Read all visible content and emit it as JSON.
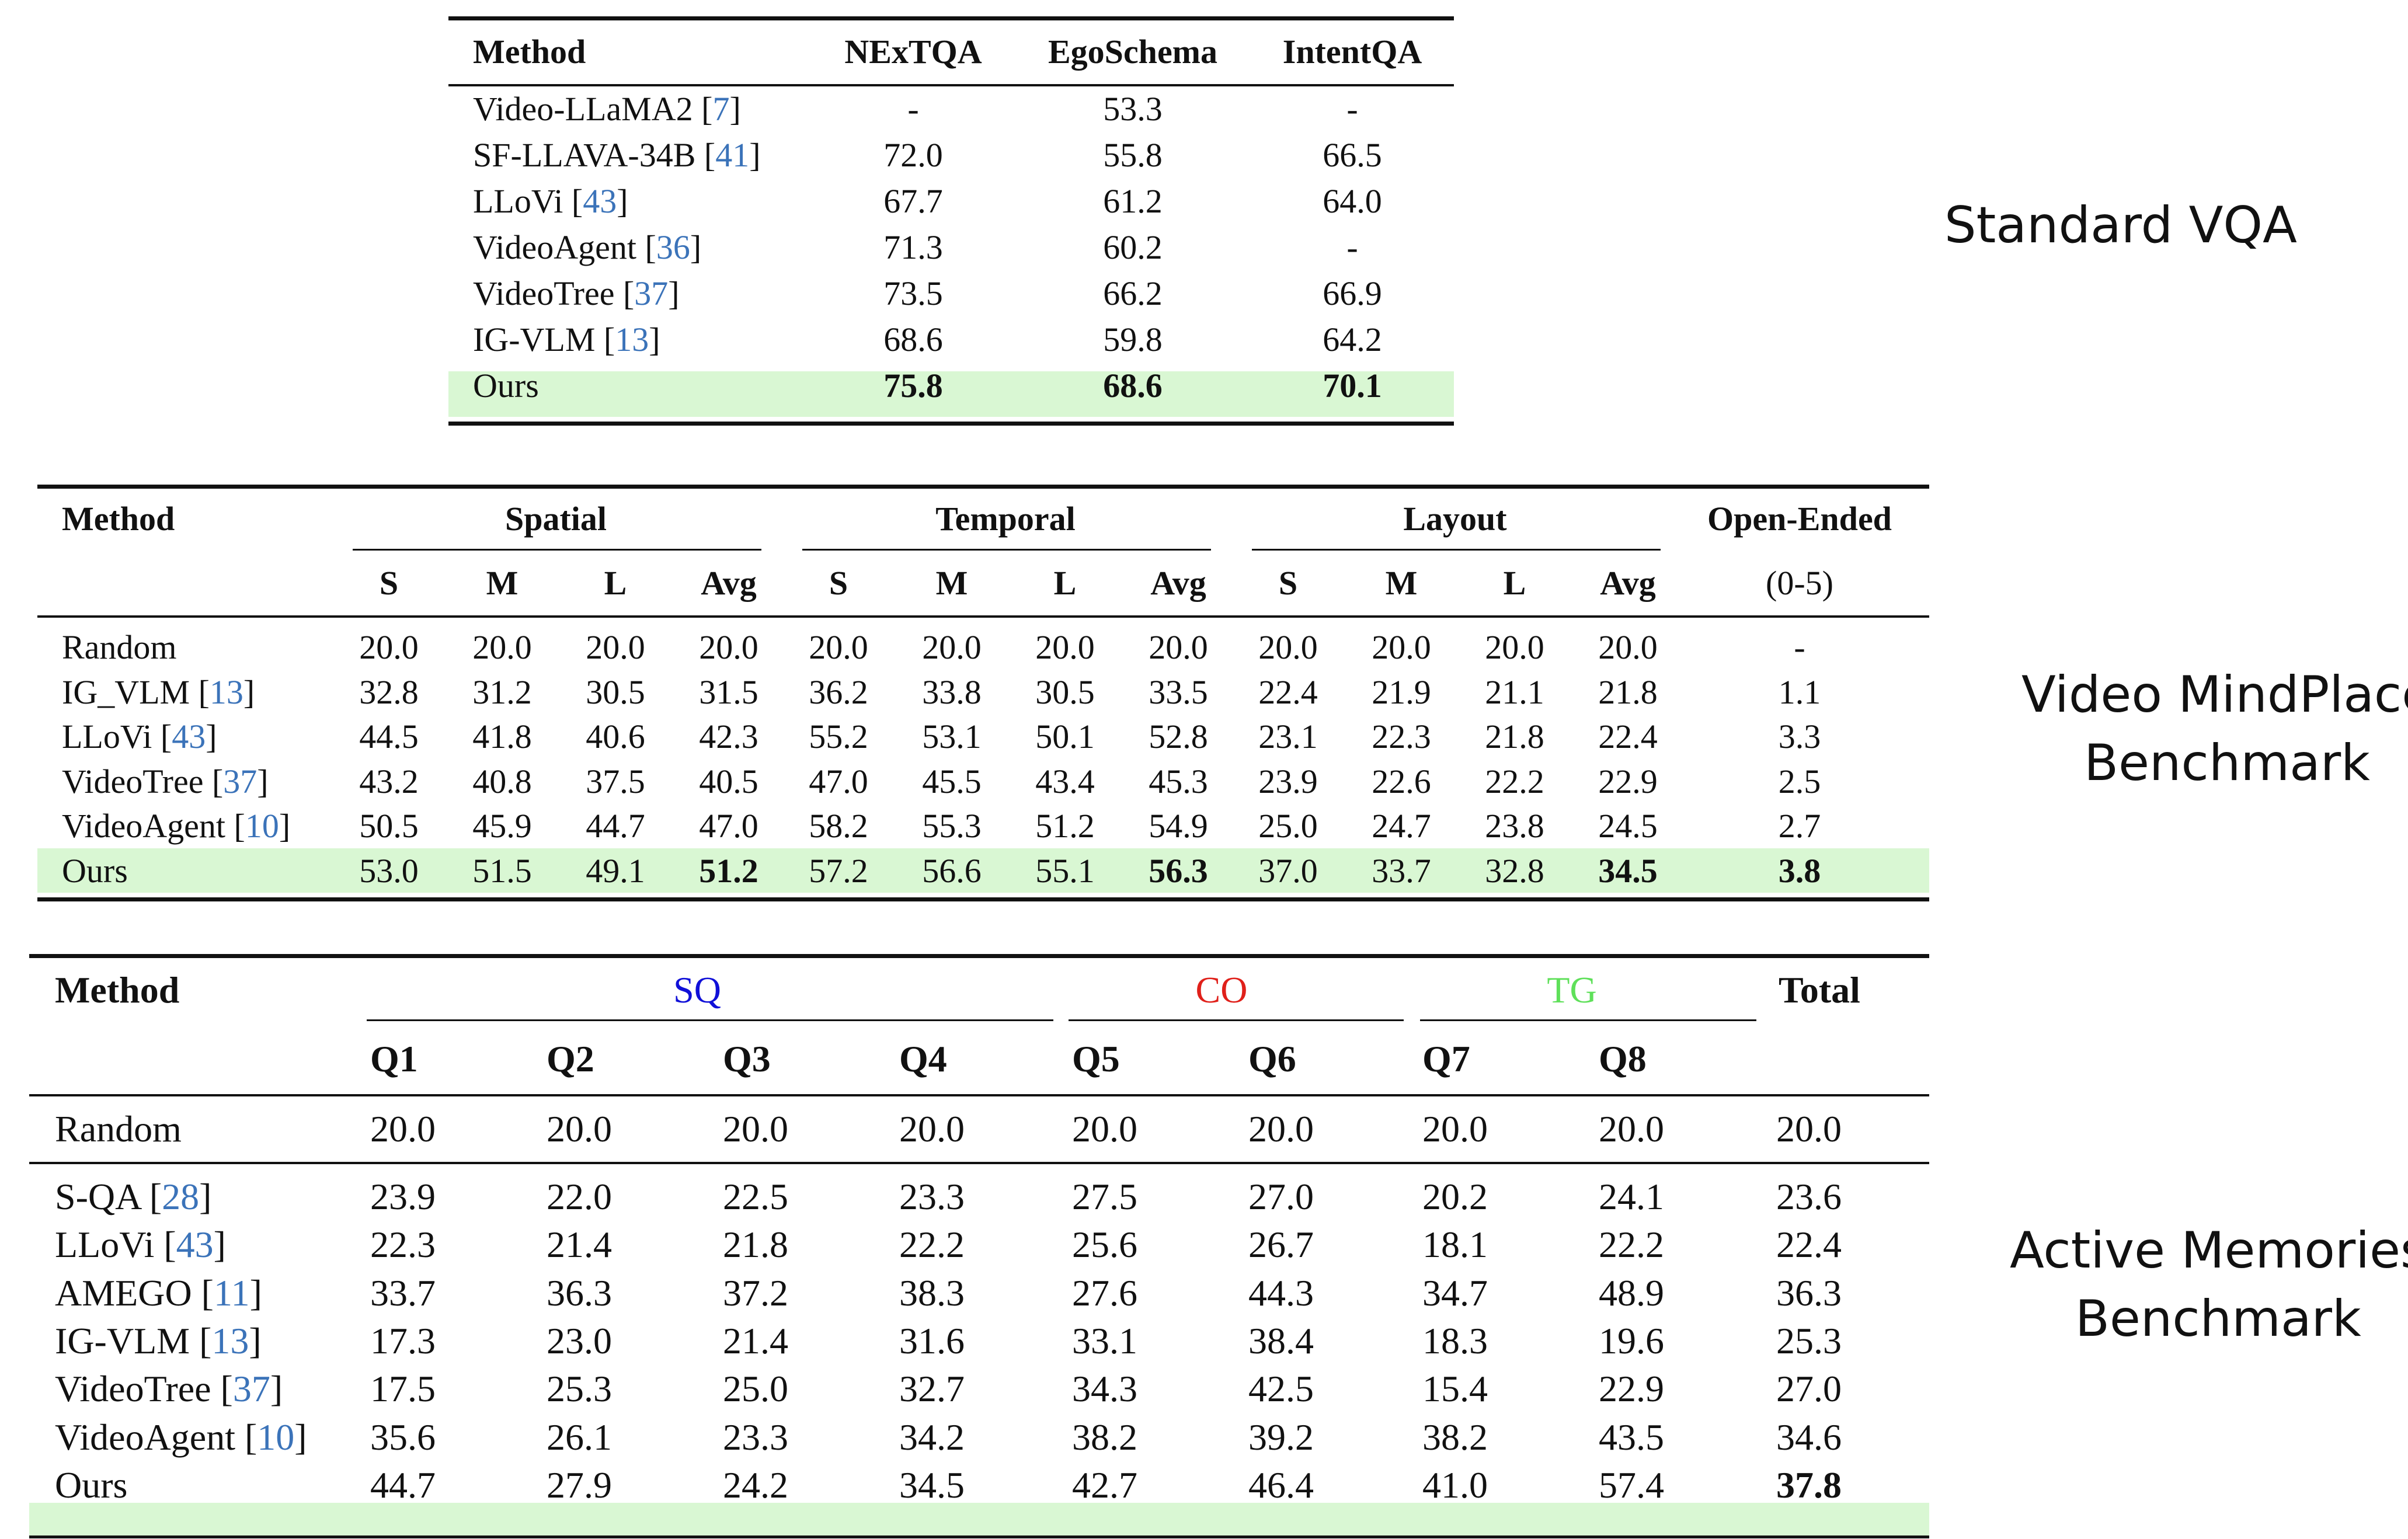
{
  "side_labels": {
    "standard_vqa": "Standard VQA",
    "mindplace_line1": "Video MindPlace",
    "mindplace_line2": "Benchmark",
    "active_line1": "Active Memories",
    "active_line2": "Benchmark"
  },
  "table1": {
    "headers": [
      "Method",
      "NExTQA",
      "EgoSchema",
      "IntentQA"
    ],
    "rows": [
      {
        "name": "Video-LLaMA2",
        "ref": "7",
        "values": [
          "-",
          "53.3",
          "-"
        ]
      },
      {
        "name": "SF-LLAVA-34B",
        "ref": "41",
        "values": [
          "72.0",
          "55.8",
          "66.5"
        ]
      },
      {
        "name": "LLoVi",
        "ref": "43",
        "values": [
          "67.7",
          "61.2",
          "64.0"
        ]
      },
      {
        "name": "VideoAgent",
        "ref": "36",
        "values": [
          "71.3",
          "60.2",
          "-"
        ]
      },
      {
        "name": "VideoTree",
        "ref": "37",
        "values": [
          "73.5",
          "66.2",
          "66.9"
        ]
      },
      {
        "name": "IG-VLM",
        "ref": "13",
        "values": [
          "68.6",
          "59.8",
          "64.2"
        ]
      },
      {
        "name": "Ours",
        "ref": "",
        "values": [
          "75.8",
          "68.6",
          "70.1"
        ]
      }
    ]
  },
  "table2": {
    "method_header": "Method",
    "groups": [
      "Spatial",
      "Temporal",
      "Layout",
      "Open-Ended"
    ],
    "subheaders": [
      "S",
      "M",
      "L",
      "Avg",
      "S",
      "M",
      "L",
      "Avg",
      "S",
      "M",
      "L",
      "Avg",
      "(0-5)"
    ],
    "rows": [
      {
        "name": "Random",
        "ref": "",
        "values": [
          "20.0",
          "20.0",
          "20.0",
          "20.0",
          "20.0",
          "20.0",
          "20.0",
          "20.0",
          "20.0",
          "20.0",
          "20.0",
          "20.0",
          "-"
        ]
      },
      {
        "name": "IG_VLM",
        "ref": "13",
        "values": [
          "32.8",
          "31.2",
          "30.5",
          "31.5",
          "36.2",
          "33.8",
          "30.5",
          "33.5",
          "22.4",
          "21.9",
          "21.1",
          "21.8",
          "1.1"
        ]
      },
      {
        "name": "LLoVi",
        "ref": "43",
        "values": [
          "44.5",
          "41.8",
          "40.6",
          "42.3",
          "55.2",
          "53.1",
          "50.1",
          "52.8",
          "23.1",
          "22.3",
          "21.8",
          "22.4",
          "3.3"
        ]
      },
      {
        "name": "VideoTree",
        "ref": "37",
        "values": [
          "43.2",
          "40.8",
          "37.5",
          "40.5",
          "47.0",
          "45.5",
          "43.4",
          "45.3",
          "23.9",
          "22.6",
          "22.2",
          "22.9",
          "2.5"
        ]
      },
      {
        "name": "VideoAgent",
        "ref": "10",
        "values": [
          "50.5",
          "45.9",
          "44.7",
          "47.0",
          "58.2",
          "55.3",
          "51.2",
          "54.9",
          "25.0",
          "24.7",
          "23.8",
          "24.5",
          "2.7"
        ]
      },
      {
        "name": "Ours",
        "ref": "",
        "values": [
          "53.0",
          "51.5",
          "49.1",
          "51.2",
          "57.2",
          "56.6",
          "55.1",
          "56.3",
          "37.0",
          "33.7",
          "32.8",
          "34.5",
          "3.8"
        ]
      }
    ]
  },
  "table3": {
    "method_header": "Method",
    "groups": [
      "SQ",
      "CO",
      "TG",
      "Total"
    ],
    "group_colors": {
      "SQ": "#1010d8",
      "CO": "#e0201a",
      "TG": "#5fe05a"
    },
    "subheaders": [
      "Q1",
      "Q2",
      "Q3",
      "Q4",
      "Q5",
      "Q6",
      "Q7",
      "Q8"
    ],
    "random": {
      "name": "Random",
      "values": [
        "20.0",
        "20.0",
        "20.0",
        "20.0",
        "20.0",
        "20.0",
        "20.0",
        "20.0",
        "20.0"
      ]
    },
    "rows": [
      {
        "name": "S-QA",
        "ref": "28",
        "values": [
          "23.9",
          "22.0",
          "22.5",
          "23.3",
          "27.5",
          "27.0",
          "20.2",
          "24.1",
          "23.6"
        ]
      },
      {
        "name": "LLoVi",
        "ref": "43",
        "values": [
          "22.3",
          "21.4",
          "21.8",
          "22.2",
          "25.6",
          "26.7",
          "18.1",
          "22.2",
          "22.4"
        ]
      },
      {
        "name": "AMEGO",
        "ref": "11",
        "values": [
          "33.7",
          "36.3",
          "37.2",
          "38.3",
          "27.6",
          "44.3",
          "34.7",
          "48.9",
          "36.3"
        ]
      },
      {
        "name": "IG-VLM",
        "ref": "13",
        "values": [
          "17.3",
          "23.0",
          "21.4",
          "31.6",
          "33.1",
          "38.4",
          "18.3",
          "19.6",
          "25.3"
        ]
      },
      {
        "name": "VideoTree",
        "ref": "37",
        "values": [
          "17.5",
          "25.3",
          "25.0",
          "32.7",
          "34.3",
          "42.5",
          "15.4",
          "22.9",
          "27.0"
        ]
      },
      {
        "name": "VideoAgent",
        "ref": "10",
        "values": [
          "35.6",
          "26.1",
          "23.3",
          "34.2",
          "38.2",
          "39.2",
          "38.2",
          "43.5",
          "34.6"
        ]
      },
      {
        "name": "Ours",
        "ref": "",
        "values": [
          "44.7",
          "27.9",
          "24.2",
          "34.5",
          "42.7",
          "46.4",
          "41.0",
          "57.4",
          "37.8"
        ]
      }
    ],
    "highlight_color": "#d9f7d3"
  }
}
